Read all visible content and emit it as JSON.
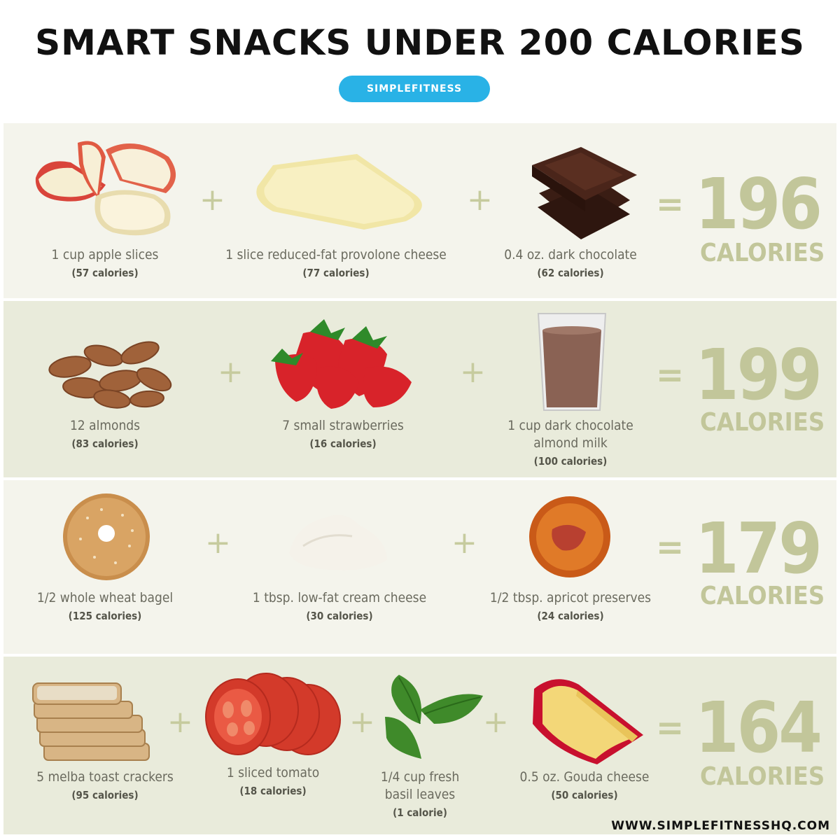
{
  "title": "SMART SNACKS UNDER 200 CALORIES",
  "brand": "SIMPLEFITNESS",
  "website": "WWW.SIMPLEFITNESSHQ.COM",
  "operators": {
    "plus": "+",
    "equals": "="
  },
  "calories_word": "CALORIES",
  "rows": [
    {
      "total": "196",
      "items": [
        {
          "name": "1 cup apple slices",
          "calories": "(57 calories)",
          "icon": "apple-slices-icon"
        },
        {
          "name": "1 slice reduced-fat provolone cheese",
          "calories": "(77 calories)",
          "icon": "provolone-cheese-icon"
        },
        {
          "name": "0.4 oz. dark chocolate",
          "calories": "(62 calories)",
          "icon": "dark-chocolate-icon"
        }
      ]
    },
    {
      "total": "199",
      "items": [
        {
          "name": "12 almonds",
          "calories": "(83 calories)",
          "icon": "almonds-icon"
        },
        {
          "name": "7 small strawberries",
          "calories": "(16 calories)",
          "icon": "strawberries-icon"
        },
        {
          "name_line1": "1 cup dark chocolate",
          "name_line2": "almond milk",
          "calories": "(100 calories)",
          "icon": "chocolate-milk-icon"
        }
      ]
    },
    {
      "total": "179",
      "items": [
        {
          "name": "1/2 whole wheat bagel",
          "calories": "(125 calories)",
          "icon": "bagel-icon"
        },
        {
          "name": "1 tbsp. low-fat cream cheese",
          "calories": "(30 calories)",
          "icon": "cream-cheese-icon"
        },
        {
          "name": "1/2 tbsp. apricot preserves",
          "calories": "(24 calories)",
          "icon": "apricot-preserves-icon"
        }
      ]
    },
    {
      "total": "164",
      "items": [
        {
          "name": "5 melba toast crackers",
          "calories": "(95 calories)",
          "icon": "melba-toast-icon"
        },
        {
          "name": "1 sliced tomato",
          "calories": "(18 calories)",
          "icon": "tomato-slices-icon"
        },
        {
          "name_line1": "1/4 cup fresh",
          "name_line2": "basil leaves",
          "calories": "(1 calorie)",
          "icon": "basil-leaves-icon"
        },
        {
          "name": "0.5 oz. Gouda cheese",
          "calories": "(50 calories)",
          "icon": "gouda-cheese-icon"
        }
      ]
    }
  ]
}
